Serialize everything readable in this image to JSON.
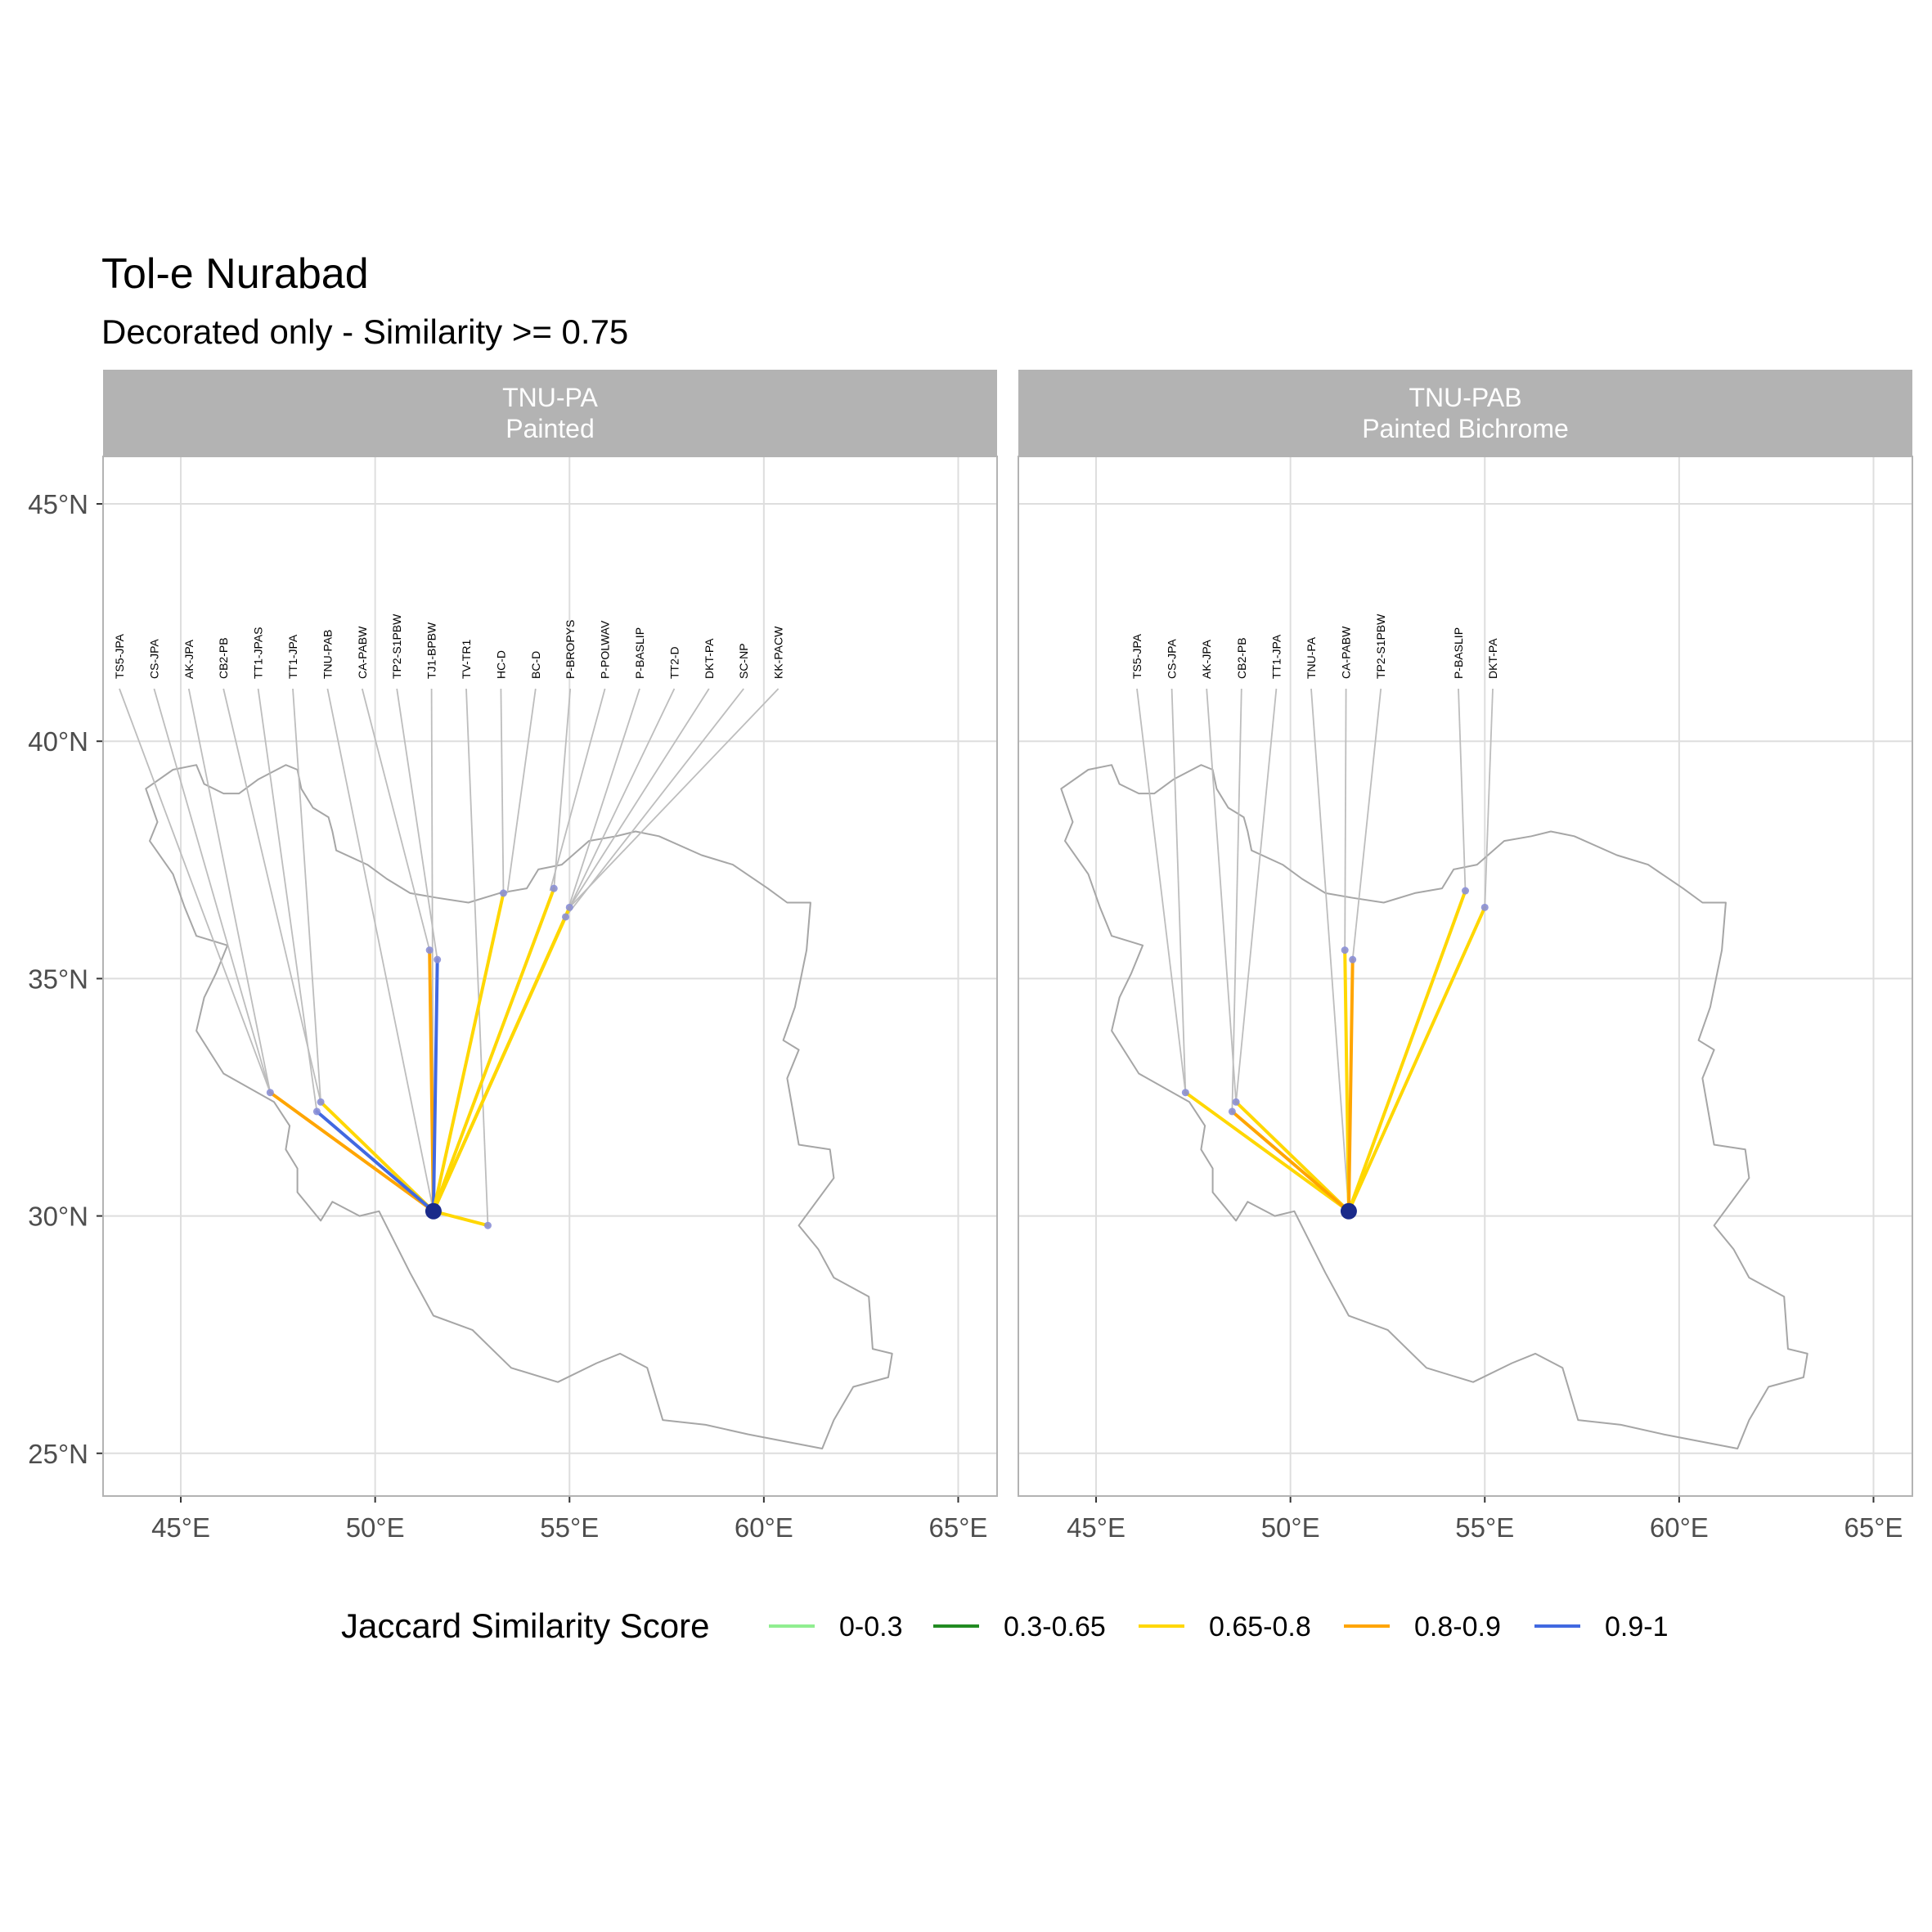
{
  "title": "Tol-e Nurabad",
  "subtitle": "Decorated only - Similarity >= 0.75",
  "x_axis_ticks": [
    {
      "value": 45,
      "label": "45°E"
    },
    {
      "value": 50,
      "label": "50°E"
    },
    {
      "value": 55,
      "label": "55°E"
    },
    {
      "value": 60,
      "label": "60°E"
    },
    {
      "value": 65,
      "label": "65°E"
    }
  ],
  "y_axis_ticks": [
    {
      "value": 25,
      "label": "25°N"
    },
    {
      "value": 30,
      "label": "30°N"
    },
    {
      "value": 35,
      "label": "35°N"
    },
    {
      "value": 40,
      "label": "40°N"
    },
    {
      "value": 45,
      "label": "45°N"
    }
  ],
  "xlim": [
    43,
    66
  ],
  "ylim": [
    24.1,
    46
  ],
  "colors": {
    "strip_bg": "#b3b3b3",
    "strip_text": "#ffffff",
    "grid": "#dedede",
    "panel_border": "#b3b3b3",
    "country": "#a6a6a6",
    "leader": "#bdbdbd",
    "site_point": "#8a8fd6",
    "origin_point": "#1a2a8a"
  },
  "legend": {
    "title": "Jaccard Similarity Score",
    "position": "bottom",
    "items": [
      {
        "label": "0-0.3",
        "color": "#90ee90"
      },
      {
        "label": "0.3-0.65",
        "color": "#228b22"
      },
      {
        "label": "0.65-0.8",
        "color": "#ffd700"
      },
      {
        "label": "0.8-0.9",
        "color": "#ffa500"
      },
      {
        "label": "0.9-1",
        "color": "#4169e1"
      }
    ]
  },
  "origin": {
    "lon": 51.5,
    "lat": 30.1
  },
  "panels": [
    {
      "strip_line1": "TNU-PA",
      "strip_line2": "Painted",
      "links": [
        {
          "lon": 47.3,
          "lat": 32.6,
          "color": "#ffa500"
        },
        {
          "lon": 48.6,
          "lat": 32.4,
          "color": "#ffd700"
        },
        {
          "lon": 48.5,
          "lat": 32.2,
          "color": "#4169e1"
        },
        {
          "lon": 51.4,
          "lat": 35.6,
          "color": "#ffa500"
        },
        {
          "lon": 51.6,
          "lat": 35.4,
          "color": "#4169e1"
        },
        {
          "lon": 52.9,
          "lat": 29.8,
          "color": "#ffd700"
        },
        {
          "lon": 53.3,
          "lat": 36.8,
          "color": "#ffd700"
        },
        {
          "lon": 54.6,
          "lat": 36.9,
          "color": "#ffd700"
        },
        {
          "lon": 54.9,
          "lat": 36.3,
          "color": "#ffd700"
        },
        {
          "lon": 55.0,
          "lat": 36.5,
          "color": "#ffd700"
        }
      ],
      "sites": [
        {
          "label": "TS5-JPA",
          "lon": 47.3,
          "lat": 32.6
        },
        {
          "label": "CS-JPA",
          "lon": 47.3,
          "lat": 32.6
        },
        {
          "label": "AK-JPA",
          "lon": 47.3,
          "lat": 32.6
        },
        {
          "label": "CB2-PB",
          "lon": 48.6,
          "lat": 32.4
        },
        {
          "label": "TT1-JPAS",
          "lon": 48.5,
          "lat": 32.2
        },
        {
          "label": "TT1-JPA",
          "lon": 48.6,
          "lat": 32.4
        },
        {
          "label": "TNU-PAB",
          "lon": 51.5,
          "lat": 30.1
        },
        {
          "label": "CA-PABW",
          "lon": 51.4,
          "lat": 35.6
        },
        {
          "label": "TP2-S1PBW",
          "lon": 51.6,
          "lat": 35.4
        },
        {
          "label": "TJ1-BPBW",
          "lon": 51.5,
          "lat": 30.1
        },
        {
          "label": "TV-TR1",
          "lon": 52.9,
          "lat": 29.8
        },
        {
          "label": "HC-D",
          "lon": 53.3,
          "lat": 36.8
        },
        {
          "label": "BC-D",
          "lon": 53.4,
          "lat": 36.8
        },
        {
          "label": "P-BROPYS",
          "lon": 54.6,
          "lat": 36.9
        },
        {
          "label": "P-POLWAV",
          "lon": 54.5,
          "lat": 36.85
        },
        {
          "label": "P-BASLIP",
          "lon": 54.9,
          "lat": 36.3
        },
        {
          "label": "TT2-D",
          "lon": 55.0,
          "lat": 36.5
        },
        {
          "label": "DKT-PA",
          "lon": 55.0,
          "lat": 36.5
        },
        {
          "label": "SC-NP",
          "lon": 54.9,
          "lat": 36.3
        },
        {
          "label": "KK-PACW",
          "lon": 55.0,
          "lat": 36.5
        }
      ]
    },
    {
      "strip_line1": "TNU-PAB",
      "strip_line2": "Painted Bichrome",
      "links": [
        {
          "lon": 47.3,
          "lat": 32.6,
          "color": "#ffd700"
        },
        {
          "lon": 48.6,
          "lat": 32.4,
          "color": "#ffd700"
        },
        {
          "lon": 48.5,
          "lat": 32.2,
          "color": "#ffa500"
        },
        {
          "lon": 51.4,
          "lat": 35.6,
          "color": "#ffd700"
        },
        {
          "lon": 51.6,
          "lat": 35.4,
          "color": "#ffa500"
        },
        {
          "lon": 54.5,
          "lat": 36.85,
          "color": "#ffd700"
        },
        {
          "lon": 55.0,
          "lat": 36.5,
          "color": "#ffd700"
        }
      ],
      "sites": [
        {
          "label": "TS5-JPA",
          "lon": 47.3,
          "lat": 32.6
        },
        {
          "label": "CS-JPA",
          "lon": 47.3,
          "lat": 32.6
        },
        {
          "label": "AK-JPA",
          "lon": 48.6,
          "lat": 32.4
        },
        {
          "label": "CB2-PB",
          "lon": 48.5,
          "lat": 32.2
        },
        {
          "label": "TT1-JPA",
          "lon": 48.6,
          "lat": 32.4
        },
        {
          "label": "TNU-PA",
          "lon": 51.5,
          "lat": 30.1
        },
        {
          "label": "CA-PABW",
          "lon": 51.4,
          "lat": 35.6
        },
        {
          "label": "TP2-S1PBW",
          "lon": 51.6,
          "lat": 35.4
        },
        {
          "label": "P-BASLIP",
          "lon": 54.5,
          "lat": 36.85
        },
        {
          "label": "DKT-PA",
          "lon": 55.0,
          "lat": 36.5
        }
      ]
    }
  ],
  "iran_outline_lonlat": [
    [
      44.8,
      39.4
    ],
    [
      45.4,
      39.5
    ],
    [
      45.6,
      39.1
    ],
    [
      46.1,
      38.9
    ],
    [
      46.5,
      38.9
    ],
    [
      47.0,
      39.2
    ],
    [
      47.7,
      39.5
    ],
    [
      48.0,
      39.4
    ],
    [
      48.1,
      39.0
    ],
    [
      48.4,
      38.6
    ],
    [
      48.8,
      38.4
    ],
    [
      48.9,
      38.1
    ],
    [
      49.0,
      37.7
    ],
    [
      49.8,
      37.4
    ],
    [
      50.3,
      37.1
    ],
    [
      50.9,
      36.8
    ],
    [
      51.6,
      36.7
    ],
    [
      52.4,
      36.6
    ],
    [
      53.2,
      36.8
    ],
    [
      53.9,
      36.9
    ],
    [
      54.2,
      37.3
    ],
    [
      54.8,
      37.4
    ],
    [
      55.5,
      37.9
    ],
    [
      56.2,
      38.0
    ],
    [
      56.7,
      38.1
    ],
    [
      57.3,
      38.0
    ],
    [
      58.4,
      37.6
    ],
    [
      59.2,
      37.4
    ],
    [
      60.1,
      36.9
    ],
    [
      60.6,
      36.6
    ],
    [
      61.2,
      36.6
    ],
    [
      61.1,
      35.6
    ],
    [
      60.8,
      34.4
    ],
    [
      60.5,
      33.7
    ],
    [
      60.9,
      33.5
    ],
    [
      60.6,
      32.9
    ],
    [
      60.9,
      31.5
    ],
    [
      61.7,
      31.4
    ],
    [
      61.8,
      30.8
    ],
    [
      60.9,
      29.8
    ],
    [
      61.4,
      29.3
    ],
    [
      61.8,
      28.7
    ],
    [
      62.7,
      28.3
    ],
    [
      62.8,
      27.2
    ],
    [
      63.3,
      27.1
    ],
    [
      63.2,
      26.6
    ],
    [
      62.3,
      26.4
    ],
    [
      61.8,
      25.7
    ],
    [
      61.5,
      25.1
    ],
    [
      59.6,
      25.4
    ],
    [
      58.5,
      25.6
    ],
    [
      57.4,
      25.7
    ],
    [
      57.0,
      26.8
    ],
    [
      56.3,
      27.1
    ],
    [
      55.7,
      26.9
    ],
    [
      54.7,
      26.5
    ],
    [
      53.5,
      26.8
    ],
    [
      52.5,
      27.6
    ],
    [
      51.5,
      27.9
    ],
    [
      50.9,
      28.8
    ],
    [
      50.1,
      30.1
    ],
    [
      49.6,
      30.0
    ],
    [
      48.9,
      30.3
    ],
    [
      48.6,
      29.9
    ],
    [
      48.0,
      30.5
    ],
    [
      48.0,
      31.0
    ],
    [
      47.7,
      31.4
    ],
    [
      47.8,
      31.9
    ],
    [
      47.4,
      32.4
    ],
    [
      46.1,
      33.0
    ],
    [
      45.4,
      33.9
    ],
    [
      45.6,
      34.6
    ],
    [
      45.9,
      35.1
    ],
    [
      46.2,
      35.7
    ],
    [
      45.4,
      35.9
    ],
    [
      45.1,
      36.5
    ],
    [
      44.8,
      37.2
    ],
    [
      44.2,
      37.9
    ],
    [
      44.4,
      38.3
    ],
    [
      44.1,
      39.0
    ],
    [
      44.8,
      39.4
    ]
  ]
}
